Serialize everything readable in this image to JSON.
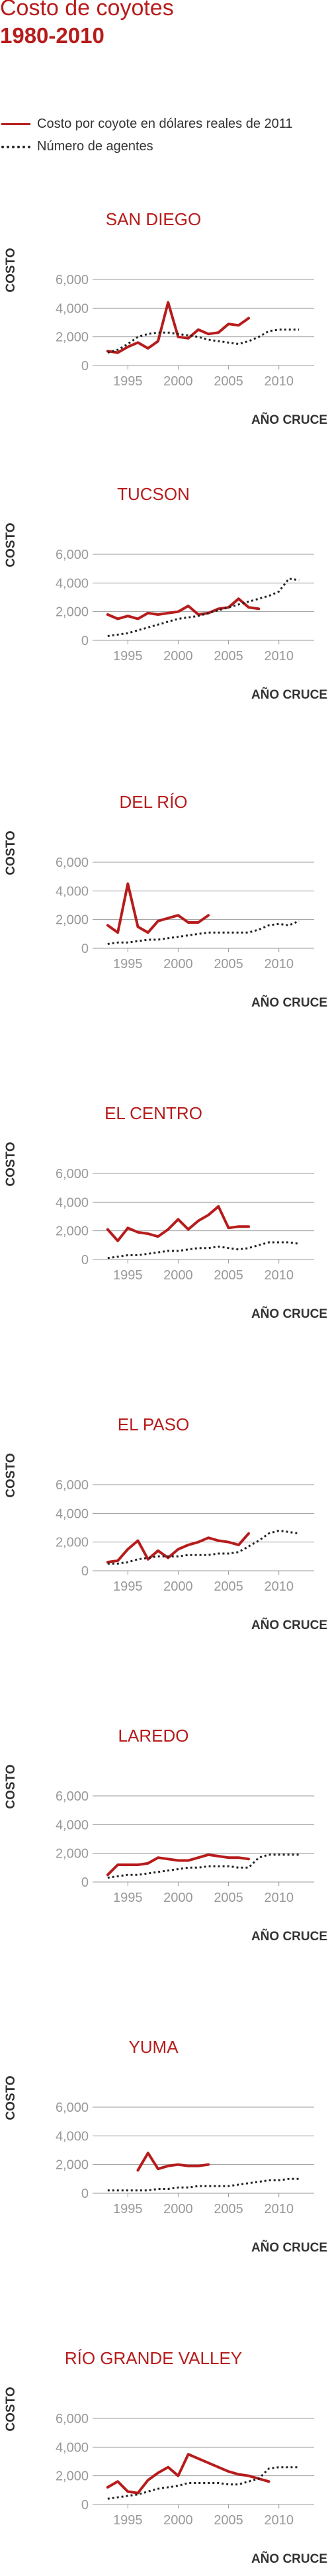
{
  "header": {
    "title": "Costo de coyotes",
    "subtitle": "1980-2010"
  },
  "legend": {
    "items": [
      {
        "label": "Costo por coyote en dólares reales de 2011",
        "style": "solid",
        "color": "#b71c1c"
      },
      {
        "label": "Número de agentes",
        "style": "dotted",
        "color": "#222222"
      }
    ]
  },
  "colors": {
    "cost_line": "#b71c1c",
    "agents_line": "#222222",
    "grid": "#999999",
    "tick_text": "#999999",
    "chart_title": "#b71c1c",
    "axis_label": "#333333"
  },
  "chart_data": [
    {
      "type": "line",
      "title": "SAN DIEGO",
      "ylabel": "COSTO",
      "xlabel": "AÑO CRUCE",
      "xlim": [
        1991.5,
        2013.5
      ],
      "ylim": [
        0,
        6000
      ],
      "xticks": [
        1995,
        2000,
        2005,
        2010
      ],
      "yticks": [
        0,
        2000,
        4000,
        6000
      ],
      "ytick_labels": [
        "0",
        "2,000",
        "4,000",
        "6,000"
      ],
      "grid": true,
      "series": [
        {
          "name": "Costo por coyote en dólares reales de 2011",
          "style": "solid",
          "x": [
            1993,
            1994,
            1995,
            1996,
            1997,
            1998,
            1999,
            2000,
            2001,
            2002,
            2003,
            2004,
            2005,
            2006,
            2007
          ],
          "y": [
            1000,
            900,
            1300,
            1600,
            1200,
            1700,
            4400,
            2000,
            1900,
            2500,
            2200,
            2300,
            2900,
            2800,
            3300
          ]
        },
        {
          "name": "Número de agentes",
          "style": "dotted",
          "x": [
            1993,
            1994,
            1995,
            1996,
            1997,
            1998,
            1999,
            2000,
            2001,
            2002,
            2003,
            2004,
            2005,
            2006,
            2007,
            2008,
            2009,
            2010,
            2011,
            2012
          ],
          "y": [
            900,
            1100,
            1500,
            2000,
            2200,
            2300,
            2300,
            2200,
            2100,
            2000,
            1800,
            1700,
            1600,
            1500,
            1700,
            2000,
            2400,
            2500,
            2500,
            2500
          ]
        }
      ]
    },
    {
      "type": "line",
      "title": "TUCSON",
      "ylabel": "COSTO",
      "xlabel": "AÑO CRUCE",
      "xlim": [
        1991.5,
        2013.5
      ],
      "ylim": [
        0,
        6000
      ],
      "xticks": [
        1995,
        2000,
        2005,
        2010
      ],
      "yticks": [
        0,
        2000,
        4000,
        6000
      ],
      "ytick_labels": [
        "0",
        "2,000",
        "4,000",
        "6,000"
      ],
      "grid": true,
      "series": [
        {
          "name": "Costo por coyote en dólares reales de 2011",
          "style": "solid",
          "x": [
            1993,
            1994,
            1995,
            1996,
            1997,
            1998,
            1999,
            2000,
            2001,
            2002,
            2003,
            2004,
            2005,
            2006,
            2007,
            2008
          ],
          "y": [
            1800,
            1500,
            1700,
            1500,
            1900,
            1800,
            1900,
            2000,
            2400,
            1800,
            1900,
            2200,
            2300,
            2900,
            2300,
            2200
          ]
        },
        {
          "name": "Número de agentes",
          "style": "dotted",
          "x": [
            1993,
            1994,
            1995,
            1996,
            1997,
            1998,
            1999,
            2000,
            2001,
            2002,
            2003,
            2004,
            2005,
            2006,
            2007,
            2008,
            2009,
            2010,
            2011,
            2012
          ],
          "y": [
            300,
            400,
            500,
            700,
            900,
            1100,
            1300,
            1500,
            1600,
            1700,
            1900,
            2100,
            2300,
            2500,
            2700,
            2900,
            3100,
            3400,
            4300,
            4200
          ]
        }
      ]
    },
    {
      "type": "line",
      "title": "DEL RÍO",
      "ylabel": "COSTO",
      "xlabel": "AÑO CRUCE",
      "xlim": [
        1991.5,
        2013.5
      ],
      "ylim": [
        0,
        6000
      ],
      "xticks": [
        1995,
        2000,
        2005,
        2010
      ],
      "yticks": [
        0,
        2000,
        4000,
        6000
      ],
      "ytick_labels": [
        "0",
        "2,000",
        "4,000",
        "6,000"
      ],
      "grid": true,
      "series": [
        {
          "name": "Costo por coyote en dólares reales de 2011",
          "style": "solid",
          "x": [
            1993,
            1994,
            1995,
            1996,
            1997,
            1998,
            1999,
            2000,
            2001,
            2002,
            2003
          ],
          "y": [
            1600,
            1100,
            4500,
            1500,
            1100,
            1900,
            2100,
            2300,
            1800,
            1800,
            2300
          ]
        },
        {
          "name": "Número de agentes",
          "style": "dotted",
          "x": [
            1993,
            1994,
            1995,
            1996,
            1997,
            1998,
            1999,
            2000,
            2001,
            2002,
            2003,
            2004,
            2005,
            2006,
            2007,
            2008,
            2009,
            2010,
            2011,
            2012
          ],
          "y": [
            300,
            400,
            400,
            500,
            600,
            600,
            700,
            800,
            900,
            1000,
            1100,
            1100,
            1100,
            1100,
            1100,
            1300,
            1600,
            1700,
            1600,
            1900
          ]
        }
      ]
    },
    {
      "type": "line",
      "title": "EL CENTRO",
      "ylabel": "COSTO",
      "xlabel": "AÑO CRUCE",
      "xlim": [
        1991.5,
        2013.5
      ],
      "ylim": [
        0,
        6000
      ],
      "xticks": [
        1995,
        2000,
        2005,
        2010
      ],
      "yticks": [
        0,
        2000,
        4000,
        6000
      ],
      "ytick_labels": [
        "0",
        "2,000",
        "4,000",
        "6,000"
      ],
      "grid": true,
      "series": [
        {
          "name": "Costo por coyote en dólares reales de 2011",
          "style": "solid",
          "x": [
            1993,
            1994,
            1995,
            1996,
            1997,
            1998,
            1999,
            2000,
            2001,
            2002,
            2003,
            2004,
            2005,
            2006,
            2007
          ],
          "y": [
            2100,
            1300,
            2200,
            1900,
            1800,
            1600,
            2100,
            2800,
            2100,
            2700,
            3100,
            3700,
            2200,
            2300,
            2300
          ]
        },
        {
          "name": "Número de agentes",
          "style": "dotted",
          "x": [
            1993,
            1994,
            1995,
            1996,
            1997,
            1998,
            1999,
            2000,
            2001,
            2002,
            2003,
            2004,
            2005,
            2006,
            2007,
            2008,
            2009,
            2010,
            2011,
            2012
          ],
          "y": [
            100,
            200,
            300,
            300,
            400,
            500,
            600,
            600,
            700,
            800,
            800,
            900,
            800,
            700,
            800,
            1000,
            1200,
            1200,
            1200,
            1100
          ]
        }
      ]
    },
    {
      "type": "line",
      "title": "EL PASO",
      "ylabel": "COSTO",
      "xlabel": "AÑO CRUCE",
      "xlim": [
        1991.5,
        2013.5
      ],
      "ylim": [
        0,
        6000
      ],
      "xticks": [
        1995,
        2000,
        2005,
        2010
      ],
      "yticks": [
        0,
        2000,
        4000,
        6000
      ],
      "ytick_labels": [
        "0",
        "2,000",
        "4,000",
        "6,000"
      ],
      "grid": true,
      "series": [
        {
          "name": "Costo por coyote en dólares reales de 2011",
          "style": "solid",
          "x": [
            1993,
            1994,
            1995,
            1996,
            1997,
            1998,
            1999,
            2000,
            2001,
            2002,
            2003,
            2004,
            2005,
            2006,
            2007
          ],
          "y": [
            600,
            700,
            1500,
            2100,
            800,
            1400,
            900,
            1500,
            1800,
            2000,
            2300,
            2100,
            2000,
            1800,
            2600
          ]
        },
        {
          "name": "Número de agentes",
          "style": "dotted",
          "x": [
            1993,
            1994,
            1995,
            1996,
            1997,
            1998,
            1999,
            2000,
            2001,
            2002,
            2003,
            2004,
            2005,
            2006,
            2007,
            2008,
            2009,
            2010,
            2011,
            2012
          ],
          "y": [
            500,
            500,
            600,
            800,
            900,
            1000,
            1000,
            1000,
            1100,
            1100,
            1100,
            1200,
            1200,
            1300,
            1700,
            2100,
            2600,
            2800,
            2700,
            2600
          ]
        }
      ]
    },
    {
      "type": "line",
      "title": "LAREDO",
      "ylabel": "COSTO",
      "xlabel": "AÑO CRUCE",
      "xlim": [
        1991.5,
        2013.5
      ],
      "ylim": [
        0,
        6000
      ],
      "xticks": [
        1995,
        2000,
        2005,
        2010
      ],
      "yticks": [
        0,
        2000,
        4000,
        6000
      ],
      "ytick_labels": [
        "0",
        "2,000",
        "4,000",
        "6,000"
      ],
      "grid": true,
      "series": [
        {
          "name": "Costo por coyote en dólares reales de 2011",
          "style": "solid",
          "x": [
            1993,
            1994,
            1995,
            1996,
            1997,
            1998,
            1999,
            2000,
            2001,
            2002,
            2003,
            2004,
            2005,
            2006,
            2007
          ],
          "y": [
            500,
            1200,
            1200,
            1200,
            1300,
            1700,
            1600,
            1500,
            1500,
            1700,
            1900,
            1800,
            1700,
            1700,
            1600
          ]
        },
        {
          "name": "Número de agentes",
          "style": "dotted",
          "x": [
            1993,
            1994,
            1995,
            1996,
            1997,
            1998,
            1999,
            2000,
            2001,
            2002,
            2003,
            2004,
            2005,
            2006,
            2007,
            2008,
            2009,
            2010,
            2011,
            2012
          ],
          "y": [
            300,
            400,
            500,
            500,
            600,
            700,
            800,
            900,
            1000,
            1000,
            1100,
            1100,
            1100,
            1000,
            1000,
            1700,
            1900,
            1900,
            1900,
            1900
          ]
        }
      ]
    },
    {
      "type": "line",
      "title": "YUMA",
      "ylabel": "COSTO",
      "xlabel": "AÑO CRUCE",
      "xlim": [
        1991.5,
        2013.5
      ],
      "ylim": [
        0,
        6000
      ],
      "xticks": [
        1995,
        2000,
        2005,
        2010
      ],
      "yticks": [
        0,
        2000,
        4000,
        6000
      ],
      "ytick_labels": [
        "0",
        "2,000",
        "4,000",
        "6,000"
      ],
      "grid": true,
      "series": [
        {
          "name": "Costo por coyote en dólares reales de 2011",
          "style": "solid",
          "x": [
            1996,
            1997,
            1998,
            1999,
            2000,
            2001,
            2002,
            2003
          ],
          "y": [
            1600,
            2800,
            1700,
            1900,
            2000,
            1900,
            1900,
            2000
          ]
        },
        {
          "name": "Número de agentes",
          "style": "dotted",
          "x": [
            1993,
            1994,
            1995,
            1996,
            1997,
            1998,
            1999,
            2000,
            2001,
            2002,
            2003,
            2004,
            2005,
            2006,
            2007,
            2008,
            2009,
            2010,
            2011,
            2012
          ],
          "y": [
            200,
            200,
            200,
            200,
            200,
            300,
            300,
            400,
            400,
            500,
            500,
            500,
            500,
            600,
            700,
            800,
            900,
            900,
            1000,
            1000
          ]
        }
      ]
    },
    {
      "type": "line",
      "title": "RÍO GRANDE VALLEY",
      "ylabel": "COSTO",
      "xlabel": "AÑO CRUCE",
      "xlim": [
        1991.5,
        2013.5
      ],
      "ylim": [
        0,
        6000
      ],
      "xticks": [
        1995,
        2000,
        2005,
        2010
      ],
      "yticks": [
        0,
        2000,
        4000,
        6000
      ],
      "ytick_labels": [
        "0",
        "2,000",
        "4,000",
        "6,000"
      ],
      "grid": true,
      "series": [
        {
          "name": "Costo por coyote en dólares reales de 2011",
          "style": "solid",
          "x": [
            1993,
            1994,
            1995,
            1996,
            1997,
            1998,
            1999,
            2000,
            2001,
            2002,
            2003,
            2004,
            2005,
            2006,
            2007,
            2008,
            2009
          ],
          "y": [
            1200,
            1600,
            900,
            800,
            1700,
            2200,
            2600,
            2000,
            3500,
            3200,
            2900,
            2600,
            2300,
            2100,
            2000,
            1800,
            1600
          ]
        },
        {
          "name": "Número de agentes",
          "style": "dotted",
          "x": [
            1993,
            1994,
            1995,
            1996,
            1997,
            1998,
            1999,
            2000,
            2001,
            2002,
            2003,
            2004,
            2005,
            2006,
            2007,
            2008,
            2009,
            2010,
            2011,
            2012
          ],
          "y": [
            400,
            500,
            600,
            700,
            900,
            1100,
            1200,
            1300,
            1500,
            1500,
            1500,
            1500,
            1400,
            1400,
            1600,
            1800,
            2500,
            2600,
            2600,
            2600
          ]
        }
      ]
    }
  ]
}
